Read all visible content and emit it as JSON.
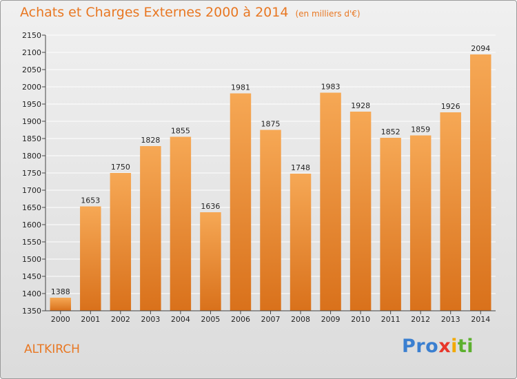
{
  "header": {
    "title": "Achats et Charges Externes 2000 à 2014",
    "unit": "(en milliers d'€)"
  },
  "location": "ALTKIRCH",
  "logo": {
    "text": "Proxiti",
    "letters": [
      {
        "char": "P",
        "color": "#3a7fd0"
      },
      {
        "char": "r",
        "color": "#3a7fd0"
      },
      {
        "char": "o",
        "color": "#3a7fd0"
      },
      {
        "char": "x",
        "color": "#e8362a"
      },
      {
        "char": "i",
        "color": "#f2a900"
      },
      {
        "char": "t",
        "color": "#5cb02e"
      },
      {
        "char": "i",
        "color": "#5cb02e"
      }
    ]
  },
  "colors": {
    "title": "#e87722",
    "bar_top": "#f6a855",
    "bar_bottom": "#d9711b",
    "grid": "#ffffff"
  },
  "chart_data": {
    "type": "bar",
    "title": "Achats et Charges Externes 2000 à 2014",
    "subtitle": "(en milliers d'€)",
    "categories": [
      "2000",
      "2001",
      "2002",
      "2003",
      "2004",
      "2005",
      "2006",
      "2007",
      "2008",
      "2009",
      "2010",
      "2011",
      "2012",
      "2013",
      "2014"
    ],
    "values": [
      1388,
      1653,
      1750,
      1828,
      1855,
      1636,
      1981,
      1875,
      1748,
      1983,
      1928,
      1852,
      1859,
      1926,
      2094
    ],
    "data_labels": [
      "1388",
      "1653",
      "1750",
      "1828",
      "1855",
      "1636",
      "1981",
      "1875",
      "1748",
      "1983",
      "1928",
      "1852",
      "1859",
      "1926",
      "2094"
    ],
    "ylim": [
      1350,
      2150
    ],
    "yticks": [
      1350,
      1400,
      1450,
      1500,
      1550,
      1600,
      1650,
      1700,
      1750,
      1800,
      1850,
      1900,
      1950,
      2000,
      2050,
      2100,
      2150
    ],
    "grid": true,
    "legend": "none"
  }
}
